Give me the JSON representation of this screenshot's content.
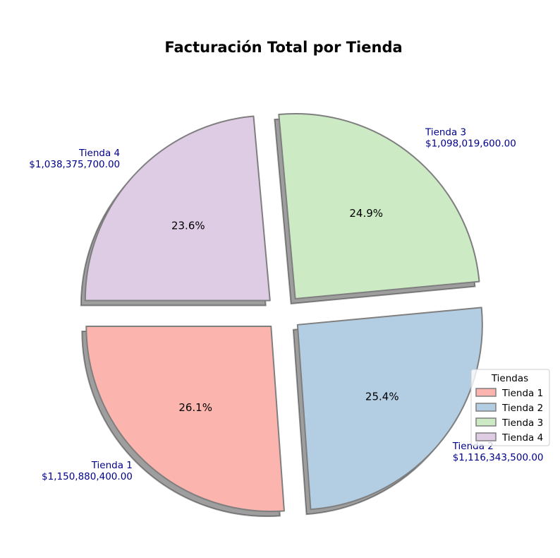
{
  "chart_data": {
    "type": "pie",
    "title": "Facturación Total por Tienda",
    "legend_title": "Tiendas",
    "legend_position": "right",
    "slices": [
      {
        "label": "Tienda 1",
        "value": 1150880400.0,
        "value_text": "$1,150,880,400.00",
        "percent": 26.1,
        "percent_text": "26.1%",
        "color": "#fbb4ae"
      },
      {
        "label": "Tienda 2",
        "value": 1116343500.0,
        "value_text": "$1,116,343,500.00",
        "percent": 25.4,
        "percent_text": "25.4%",
        "color": "#b3cde3"
      },
      {
        "label": "Tienda 3",
        "value": 1098019600.0,
        "value_text": "$1,098,019,600.00",
        "percent": 24.9,
        "percent_text": "24.9%",
        "color": "#ccebc5"
      },
      {
        "label": "Tienda 4",
        "value": 1038375700.0,
        "value_text": "$1,038,375,700.00",
        "percent": 23.6,
        "percent_text": "23.6%",
        "color": "#decbe4"
      }
    ],
    "exploded": true,
    "shadow": true
  }
}
